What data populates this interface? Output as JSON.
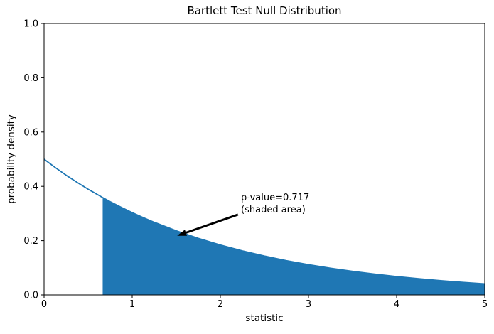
{
  "figure": {
    "background": "#ffffff"
  },
  "chart_data": {
    "type": "area",
    "title": "Bartlett Test Null Distribution",
    "xlabel": "statistic",
    "ylabel": "probability density",
    "xlim": [
      0,
      5
    ],
    "ylim": [
      0,
      1.0
    ],
    "xticks": [
      0,
      1,
      2,
      3,
      4,
      5
    ],
    "xtick_labels": [
      "0",
      "1",
      "2",
      "3",
      "4",
      "5"
    ],
    "yticks": [
      0.0,
      0.2,
      0.4,
      0.6,
      0.8,
      1.0
    ],
    "ytick_labels": [
      "0.0",
      "0.2",
      "0.4",
      "0.6",
      "0.8",
      "1.0"
    ],
    "grid": false,
    "legend": null,
    "curve_color": "#1f77b4",
    "fill_color": "#1f77b4",
    "axis_color": "#000000",
    "p_value": 0.717,
    "shade_from": 0.665,
    "curve": {
      "x": [
        0,
        0.125,
        0.25,
        0.375,
        0.5,
        0.665,
        0.75,
        0.875,
        1,
        1.125,
        1.25,
        1.5,
        1.75,
        2,
        2.25,
        2.5,
        2.75,
        3,
        3.25,
        3.5,
        3.75,
        4,
        4.25,
        4.5,
        4.75,
        5
      ],
      "y": [
        0.5,
        0.4697,
        0.4412,
        0.4145,
        0.3894,
        0.3586,
        0.3436,
        0.3228,
        0.3033,
        0.2849,
        0.2676,
        0.2362,
        0.2084,
        0.1839,
        0.1623,
        0.1433,
        0.1264,
        0.1116,
        0.0985,
        0.0869,
        0.0767,
        0.0677,
        0.0597,
        0.0527,
        0.0465,
        0.041
      ]
    },
    "annotation": {
      "text": "p-value=0.717\n(shaded area)",
      "text_pos": [
        2.234,
        0.38
      ],
      "arrow_from": [
        2.2,
        0.296
      ],
      "arrow_to": [
        1.51,
        0.218
      ],
      "color": "#000000"
    }
  }
}
